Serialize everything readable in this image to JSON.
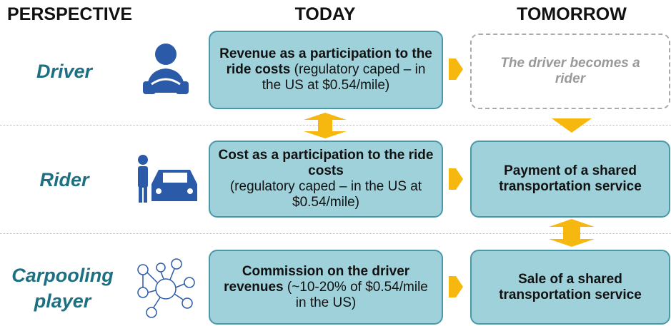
{
  "headers": {
    "perspective": "PERSPECTIVE",
    "today": "TODAY",
    "tomorrow": "TOMORROW"
  },
  "rows": [
    {
      "perspective": "Driver",
      "today": {
        "bold": "Revenue as a participation to the ride costs",
        "normal": "(regulatory caped – in the US at $0.54/mile)"
      },
      "tomorrow": "The driver becomes a rider"
    },
    {
      "perspective": "Rider",
      "today": {
        "bold": "Cost as a participation to the ride costs",
        "normal": "(regulatory caped – in the US at $0.54/mile)"
      },
      "tomorrow": "Payment of a shared transportation service"
    },
    {
      "perspective": "Carpooling player",
      "today": {
        "bold": "Commission on the driver revenues",
        "normal": "(~10-20% of $0.54/mile in the US)"
      },
      "tomorrow": "Sale of a shared transportation service"
    }
  ]
}
